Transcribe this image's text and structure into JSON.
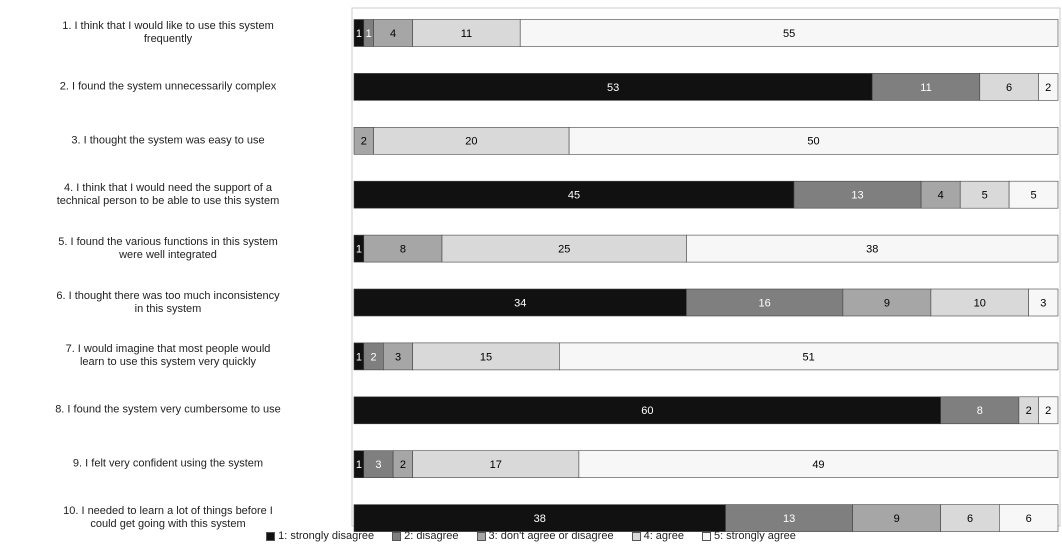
{
  "chart_data": {
    "type": "stacked_bar_horizontal",
    "categories": [
      "1. I think that I would like to use this system\nfrequently",
      "2. I found the system unnecessarily complex",
      "3. I thought the system was easy to use",
      "4. I think that I would need the support of a\ntechnical person to be able to use this system",
      "5. I found the various functions in this system\nwere well integrated",
      "6. I thought there was too much inconsistency\nin this system",
      "7. I would imagine that most people would\nlearn to use this system very quickly",
      "8. I found the system very cumbersome to use",
      "9. I felt very confident using the system",
      "10. I needed to learn a lot of things before I\ncould get going with this system"
    ],
    "series": [
      {
        "name": "1: strongly disagree",
        "color": "#111111",
        "values": [
          1,
          53,
          0,
          45,
          1,
          34,
          1,
          60,
          1,
          38
        ]
      },
      {
        "name": "2: disagree",
        "color": "#7f7f7f",
        "values": [
          1,
          11,
          0,
          13,
          0,
          16,
          2,
          8,
          3,
          13
        ]
      },
      {
        "name": "3: don't agree or disagree",
        "color": "#a6a6a6",
        "values": [
          4,
          0,
          2,
          4,
          8,
          9,
          3,
          0,
          2,
          9
        ]
      },
      {
        "name": "4: agree",
        "color": "#d9d9d9",
        "values": [
          11,
          6,
          20,
          5,
          25,
          10,
          15,
          2,
          17,
          6
        ]
      },
      {
        "name": "5: strongly agree",
        "color": "#f7f7f7",
        "values": [
          55,
          2,
          50,
          5,
          38,
          3,
          51,
          2,
          49,
          6
        ]
      }
    ],
    "xlim": [
      0,
      72
    ]
  }
}
